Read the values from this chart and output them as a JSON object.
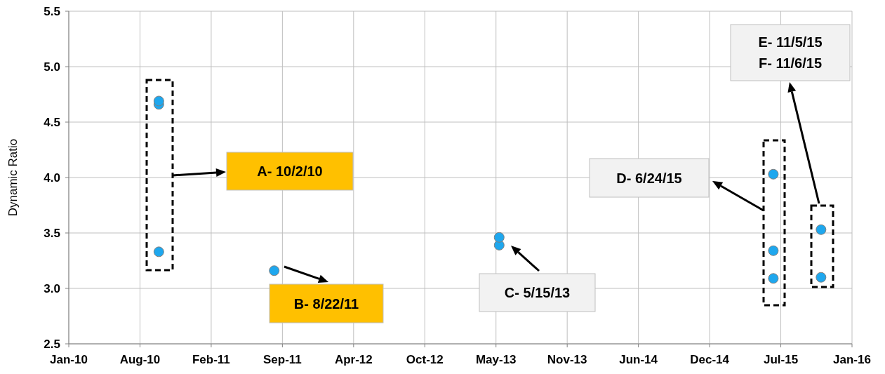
{
  "chart_data": {
    "type": "scatter",
    "ylabel": "Dynamic Ratio",
    "x": [
      "2010-10-02",
      "2010-10-02",
      "2010-10-02",
      "2011-08-22",
      "2013-05-15",
      "2013-05-15",
      "2015-06-24",
      "2015-06-24",
      "2015-06-24",
      "2015-11-05",
      "2015-11-05"
    ],
    "values": [
      4.69,
      4.66,
      3.33,
      3.16,
      3.46,
      3.39,
      4.03,
      3.34,
      3.09,
      3.53,
      3.1
    ],
    "color": "#1ea7ee",
    "marker": "circle",
    "xlim": [
      "2010-01-22",
      "2016-01-31"
    ],
    "xticks": [
      {
        "value": "2010-01-22",
        "label": "Jan-10"
      },
      {
        "value": "2010-08-10",
        "label": "Aug-10"
      },
      {
        "value": "2011-02-26",
        "label": "Feb-11"
      },
      {
        "value": "2011-09-14",
        "label": "Sep-11"
      },
      {
        "value": "2012-04-01",
        "label": "Apr-12"
      },
      {
        "value": "2012-10-18",
        "label": "Oct-12"
      },
      {
        "value": "2013-05-06",
        "label": "May-13"
      },
      {
        "value": "2013-11-22",
        "label": "Nov-13"
      },
      {
        "value": "2014-06-10",
        "label": "Jun-14"
      },
      {
        "value": "2014-12-27",
        "label": "Dec-14"
      },
      {
        "value": "2015-07-15",
        "label": "Jul-15"
      },
      {
        "value": "2016-01-31",
        "label": "Jan-16"
      }
    ],
    "ylim": [
      2.5,
      5.5
    ],
    "yticks": [
      2.5,
      {
        "value": 3,
        "label": "3.0"
      },
      3.5,
      {
        "value": 4,
        "label": "4.0"
      },
      4.5,
      {
        "value": 5,
        "label": "5.0"
      },
      5.5
    ],
    "grid": true,
    "annotations": [
      "A- 10/2/10",
      "B- 8/22/11",
      "C- 5/15/13",
      "D- 6/24/15",
      "E- 11/5/15",
      "F- 11/6/15"
    ]
  }
}
